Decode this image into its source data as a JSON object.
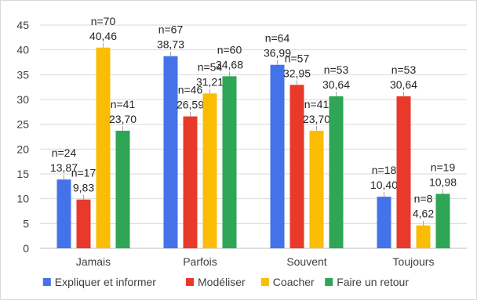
{
  "chart_data": {
    "type": "bar",
    "categories": [
      "Jamais",
      "Parfois",
      "Souvent",
      "Toujours"
    ],
    "series": [
      {
        "name": "Expliquer et informer",
        "color": "#4472E8",
        "values": [
          13.87,
          38.73,
          36.99,
          10.4
        ],
        "labels": [
          "13,87",
          "38,73",
          "36,99",
          "10,40"
        ],
        "n": [
          "n=24",
          "n=67",
          "n=64",
          "n=18"
        ]
      },
      {
        "name": "Modéliser",
        "color": "#E8392A",
        "values": [
          9.83,
          26.59,
          32.95,
          30.64
        ],
        "labels": [
          "9,83",
          "26,59",
          "32,95",
          "30,64"
        ],
        "n": [
          "n=17",
          "n=46",
          "n=57",
          "n=53"
        ]
      },
      {
        "name": "Coacher",
        "color": "#FBBC05",
        "values": [
          40.46,
          31.21,
          23.7,
          4.62
        ],
        "labels": [
          "40,46",
          "31,21",
          "23,70",
          "4,62"
        ],
        "n": [
          "n=70",
          "n=54",
          "n=41",
          "n=8"
        ]
      },
      {
        "name": "Faire un retour",
        "color": "#2EA655",
        "values": [
          23.7,
          34.68,
          30.64,
          10.98
        ],
        "labels": [
          "23,70",
          "34,68",
          "30,64",
          "10,98"
        ],
        "n": [
          "n=41",
          "n=60",
          "n=53",
          "n=19"
        ]
      }
    ],
    "ylim": [
      0,
      45
    ],
    "yticks": [
      0,
      5,
      10,
      15,
      20,
      25,
      30,
      35,
      40,
      45
    ],
    "grid": true,
    "legend": "bottom"
  }
}
